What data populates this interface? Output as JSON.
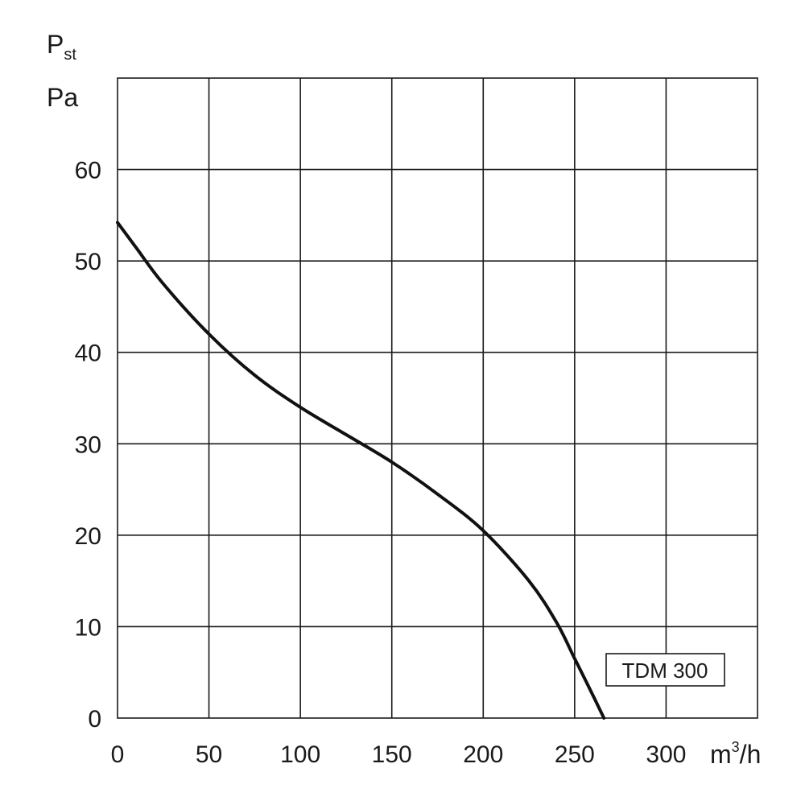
{
  "chart_data": {
    "type": "line",
    "ylabel_main": "P",
    "ylabel_sub": "st",
    "ylabel_unit": "Pa",
    "xlabel_unit": "m",
    "xlabel_sup": "3",
    "xlabel_tail": "/h",
    "xlim": [
      0,
      350
    ],
    "ylim": [
      0,
      70
    ],
    "x_ticks": [
      0,
      50,
      100,
      150,
      200,
      250,
      300
    ],
    "x_tick_labels": [
      "0",
      "50",
      "100",
      "150",
      "200",
      "250",
      "300"
    ],
    "y_ticks": [
      0,
      10,
      20,
      30,
      40,
      50,
      60
    ],
    "y_tick_labels": [
      "0",
      "10",
      "20",
      "30",
      "40",
      "50",
      "60"
    ],
    "grid": true,
    "series": [
      {
        "name": "TDM 300",
        "x": [
          0,
          10,
          25,
          50,
          75,
          100,
          125,
          150,
          175,
          200,
          225,
          240,
          250,
          258,
          266
        ],
        "y": [
          54.2,
          51.5,
          47.5,
          42,
          37.5,
          34,
          31,
          28,
          24.5,
          20.5,
          15,
          10.5,
          6.5,
          3.3,
          0
        ]
      }
    ],
    "legend_placement": "bottom-right"
  }
}
